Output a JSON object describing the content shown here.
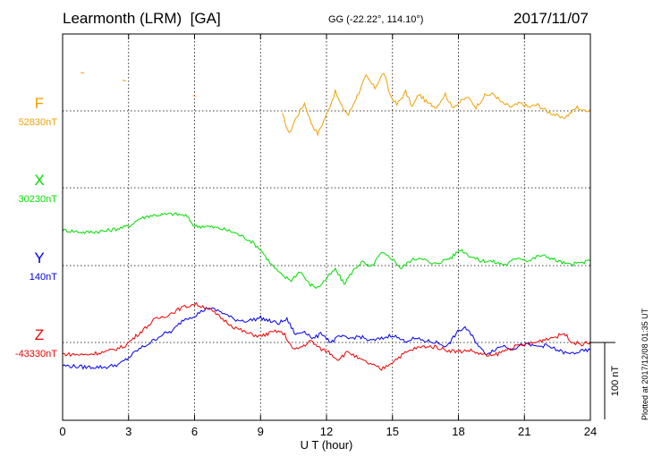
{
  "header": {
    "station": "Learmonth (LRM)  [GA]",
    "coords": "GG (-22.22°, 114.10°)",
    "date": "2017/11/07"
  },
  "footer": {
    "plotted": "Plotted at 2017/12/08 01:35 UT"
  },
  "chart_data": {
    "type": "line",
    "xlabel": "U T (hour)",
    "xlim": [
      0,
      24
    ],
    "xticks": [
      "0",
      "3",
      "6",
      "9",
      "12",
      "15",
      "18",
      "21",
      "24"
    ],
    "scale_bar": {
      "label": "100 nT",
      "value_nT": 100
    },
    "series": [
      {
        "name": "F",
        "baseline_label": "52830nT",
        "color": "#f0a000",
        "offset_points": [
          [
            10.0,
            -5
          ],
          [
            10.3,
            -30
          ],
          [
            10.6,
            -10
          ],
          [
            11.0,
            10
          ],
          [
            11.3,
            -15
          ],
          [
            11.6,
            -30
          ],
          [
            12.0,
            -5
          ],
          [
            12.4,
            25
          ],
          [
            12.7,
            5
          ],
          [
            13.0,
            -5
          ],
          [
            13.4,
            20
          ],
          [
            13.8,
            45
          ],
          [
            14.2,
            30
          ],
          [
            14.6,
            50
          ],
          [
            14.9,
            20
          ],
          [
            15.2,
            8
          ],
          [
            15.6,
            25
          ],
          [
            15.9,
            5
          ],
          [
            16.2,
            22
          ],
          [
            16.6,
            10
          ],
          [
            17.0,
            5
          ],
          [
            17.4,
            22
          ],
          [
            17.7,
            5
          ],
          [
            18.0,
            10
          ],
          [
            18.4,
            18
          ],
          [
            18.8,
            5
          ],
          [
            19.2,
            20
          ],
          [
            19.6,
            22
          ],
          [
            20.0,
            10
          ],
          [
            20.4,
            5
          ],
          [
            20.8,
            10
          ],
          [
            21.2,
            5
          ],
          [
            21.6,
            8
          ],
          [
            22.0,
            0
          ],
          [
            22.4,
            -5
          ],
          [
            22.7,
            -10
          ],
          [
            23.0,
            -5
          ],
          [
            23.4,
            5
          ],
          [
            23.7,
            0
          ],
          [
            24.0,
            2
          ]
        ],
        "isolated_points": [
          [
            0.9,
            50
          ],
          [
            2.8,
            40
          ],
          [
            6.0,
            20
          ]
        ]
      },
      {
        "name": "X",
        "baseline_label": "30230nT",
        "color": "#00dd00",
        "offset_points": [
          [
            0,
            -55
          ],
          [
            1,
            -58
          ],
          [
            2,
            -56
          ],
          [
            3,
            -50
          ],
          [
            3.5,
            -40
          ],
          [
            4,
            -36
          ],
          [
            4.5,
            -35
          ],
          [
            5,
            -34
          ],
          [
            5.6,
            -36
          ],
          [
            6,
            -50
          ],
          [
            6.5,
            -50
          ],
          [
            7.2,
            -53
          ],
          [
            7.8,
            -58
          ],
          [
            8.5,
            -68
          ],
          [
            9.0,
            -80
          ],
          [
            9.5,
            -100
          ],
          [
            10.0,
            -115
          ],
          [
            10.4,
            -120
          ],
          [
            10.8,
            -108
          ],
          [
            11.2,
            -125
          ],
          [
            11.6,
            -130
          ],
          [
            12.0,
            -118
          ],
          [
            12.4,
            -106
          ],
          [
            12.8,
            -125
          ],
          [
            13.2,
            -108
          ],
          [
            13.6,
            -96
          ],
          [
            14.0,
            -104
          ],
          [
            14.5,
            -85
          ],
          [
            15.0,
            -92
          ],
          [
            15.4,
            -105
          ],
          [
            15.8,
            -95
          ],
          [
            16.3,
            -90
          ],
          [
            16.8,
            -100
          ],
          [
            17.3,
            -95
          ],
          [
            17.7,
            -90
          ],
          [
            18.1,
            -80
          ],
          [
            18.5,
            -88
          ],
          [
            19.0,
            -95
          ],
          [
            19.4,
            -95
          ],
          [
            19.8,
            -98
          ],
          [
            20.2,
            -100
          ],
          [
            20.7,
            -90
          ],
          [
            21.2,
            -95
          ],
          [
            21.7,
            -88
          ],
          [
            22.1,
            -90
          ],
          [
            22.5,
            -95
          ],
          [
            23.0,
            -100
          ],
          [
            23.5,
            -98
          ],
          [
            24,
            -95
          ]
        ]
      },
      {
        "name": "Y",
        "baseline_label": "140nT",
        "color": "#0000ee",
        "offset_points": [
          [
            0,
            -130
          ],
          [
            1,
            -132
          ],
          [
            2,
            -132
          ],
          [
            2.6,
            -128
          ],
          [
            3,
            -120
          ],
          [
            3.4,
            -110
          ],
          [
            4,
            -100
          ],
          [
            4.5,
            -90
          ],
          [
            5,
            -85
          ],
          [
            5.5,
            -70
          ],
          [
            6,
            -65
          ],
          [
            6.6,
            -55
          ],
          [
            7.2,
            -60
          ],
          [
            7.8,
            -70
          ],
          [
            8.4,
            -72
          ],
          [
            9.0,
            -68
          ],
          [
            9.4,
            -72
          ],
          [
            9.8,
            -75
          ],
          [
            10.2,
            -70
          ],
          [
            10.6,
            -90
          ],
          [
            11.0,
            -85
          ],
          [
            11.4,
            -95
          ],
          [
            11.8,
            -88
          ],
          [
            12.2,
            -100
          ],
          [
            12.6,
            -92
          ],
          [
            13.0,
            -95
          ],
          [
            13.5,
            -92
          ],
          [
            14.0,
            -98
          ],
          [
            14.5,
            -95
          ],
          [
            15.0,
            -90
          ],
          [
            15.5,
            -98
          ],
          [
            16.0,
            -95
          ],
          [
            16.5,
            -98
          ],
          [
            17.0,
            -100
          ],
          [
            17.5,
            -105
          ],
          [
            17.9,
            -88
          ],
          [
            18.3,
            -80
          ],
          [
            18.7,
            -95
          ],
          [
            19.2,
            -115
          ],
          [
            19.6,
            -110
          ],
          [
            20.0,
            -104
          ],
          [
            20.5,
            -108
          ],
          [
            21.0,
            -102
          ],
          [
            21.5,
            -105
          ],
          [
            22.0,
            -104
          ],
          [
            22.5,
            -110
          ],
          [
            23.0,
            -115
          ],
          [
            23.5,
            -112
          ],
          [
            24,
            -110
          ]
        ]
      },
      {
        "name": "Z",
        "baseline_label": "-43330nT",
        "color": "#ee0000",
        "offset_points": [
          [
            0,
            -15
          ],
          [
            1,
            -16
          ],
          [
            2,
            -12
          ],
          [
            2.8,
            -5
          ],
          [
            3.2,
            5
          ],
          [
            3.6,
            15
          ],
          [
            4.2,
            30
          ],
          [
            4.8,
            36
          ],
          [
            5.4,
            45
          ],
          [
            6.0,
            50
          ],
          [
            6.6,
            45
          ],
          [
            7.2,
            32
          ],
          [
            7.8,
            20
          ],
          [
            8.4,
            12
          ],
          [
            9.0,
            8
          ],
          [
            9.4,
            12
          ],
          [
            9.8,
            15
          ],
          [
            10.1,
            10
          ],
          [
            10.5,
            -10
          ],
          [
            10.9,
            -5
          ],
          [
            11.3,
            2
          ],
          [
            11.7,
            -8
          ],
          [
            12.1,
            -12
          ],
          [
            12.5,
            -22
          ],
          [
            13.0,
            -12
          ],
          [
            13.5,
            -22
          ],
          [
            14.0,
            -28
          ],
          [
            14.5,
            -35
          ],
          [
            15.0,
            -25
          ],
          [
            15.5,
            -15
          ],
          [
            16.0,
            -8
          ],
          [
            16.5,
            -5
          ],
          [
            17.0,
            -6
          ],
          [
            17.5,
            -10
          ],
          [
            18.0,
            -12
          ],
          [
            18.5,
            -10
          ],
          [
            19.0,
            -15
          ],
          [
            19.5,
            -18
          ],
          [
            20.0,
            -12
          ],
          [
            20.5,
            -6
          ],
          [
            21.0,
            -3
          ],
          [
            21.5,
            0
          ],
          [
            22.0,
            5
          ],
          [
            22.5,
            8
          ],
          [
            22.8,
            12
          ],
          [
            23.2,
            0
          ],
          [
            23.6,
            -2
          ],
          [
            24,
            0
          ]
        ]
      }
    ]
  }
}
